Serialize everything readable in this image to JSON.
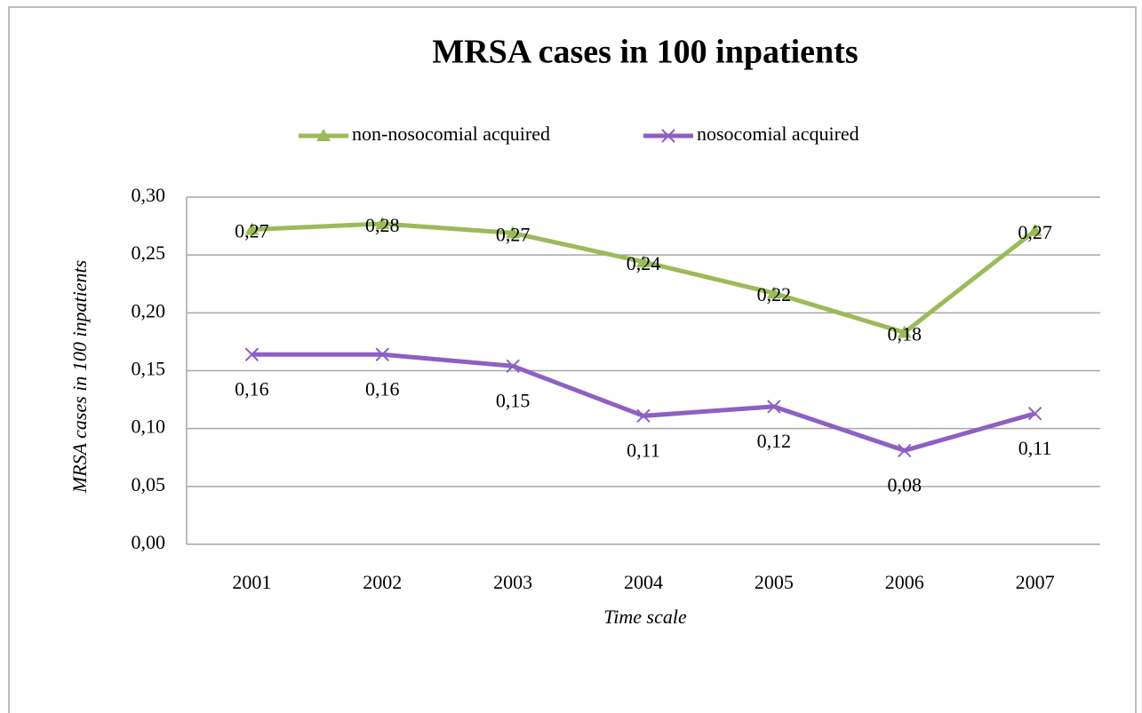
{
  "chart_data": {
    "type": "line",
    "title": "MRSA cases in 100 inpatients",
    "y_label": "MRSA cases in 100 inpatients",
    "x_label": "Time scale",
    "categories": [
      "2001",
      "2002",
      "2003",
      "2004",
      "2005",
      "2006",
      "2007"
    ],
    "series": [
      {
        "name": "non-nosocomial acquired",
        "color": "#9bbb59",
        "marker": "triangle",
        "values": [
          0.272,
          0.277,
          0.269,
          0.244,
          0.217,
          0.183,
          0.271
        ],
        "value_labels": [
          "0,27",
          "0,28",
          "0,27",
          "0,24",
          "0,22",
          "0,18",
          "0,27"
        ]
      },
      {
        "name": "nosocomial acquired",
        "color": "#8e5fc4",
        "marker": "x",
        "values": [
          0.164,
          0.164,
          0.154,
          0.111,
          0.119,
          0.081,
          0.113
        ],
        "value_labels": [
          "0,16",
          "0,16",
          "0,15",
          "0,11",
          "0,12",
          "0,08",
          "0,11"
        ]
      }
    ],
    "ylim": [
      0,
      0.3
    ],
    "yticks": [
      {
        "value": 0,
        "label": "0,00"
      },
      {
        "value": 0.05,
        "label": "0,05"
      },
      {
        "value": 0.1,
        "label": "0,10"
      },
      {
        "value": 0.15,
        "label": "0,15"
      },
      {
        "value": 0.2,
        "label": "0,20"
      },
      {
        "value": 0.25,
        "label": "0,25"
      },
      {
        "value": 0.3,
        "label": "0,30"
      }
    ],
    "grid": true,
    "legend": "top"
  }
}
